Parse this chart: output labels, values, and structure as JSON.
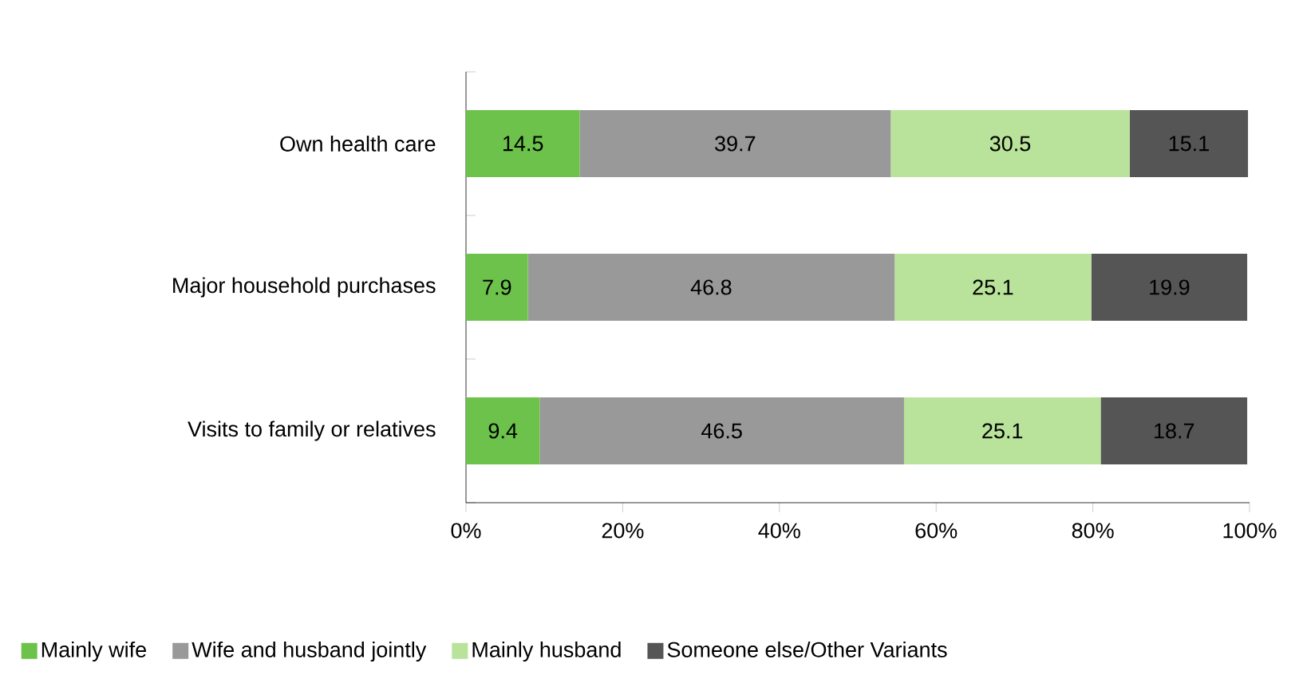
{
  "chart_data": {
    "type": "bar",
    "orientation": "horizontal",
    "stacked": true,
    "categories": [
      "Own health care",
      "Major household purchases",
      "Visits to family or relatives"
    ],
    "series": [
      {
        "name": "Mainly wife",
        "color": "#6cc24a",
        "values": [
          14.5,
          7.9,
          9.4
        ]
      },
      {
        "name": "Wife and husband jointly",
        "color": "#999999",
        "values": [
          39.7,
          46.8,
          46.5
        ]
      },
      {
        "name": "Mainly husband",
        "color": "#b9e29a",
        "values": [
          30.5,
          25.1,
          25.1
        ]
      },
      {
        "name": "Someone else/Other Variants",
        "color": "#555555",
        "values": [
          15.1,
          19.9,
          18.7
        ]
      }
    ],
    "xlim": [
      0,
      100
    ],
    "xticks": [
      {
        "value": 0,
        "label": "0%"
      },
      {
        "value": 20,
        "label": "20%"
      },
      {
        "value": 40,
        "label": "40%"
      },
      {
        "value": 60,
        "label": "60%"
      },
      {
        "value": 80,
        "label": "80%"
      },
      {
        "value": 100,
        "label": "100%"
      }
    ],
    "data_labels": true,
    "legend": "bottom"
  }
}
